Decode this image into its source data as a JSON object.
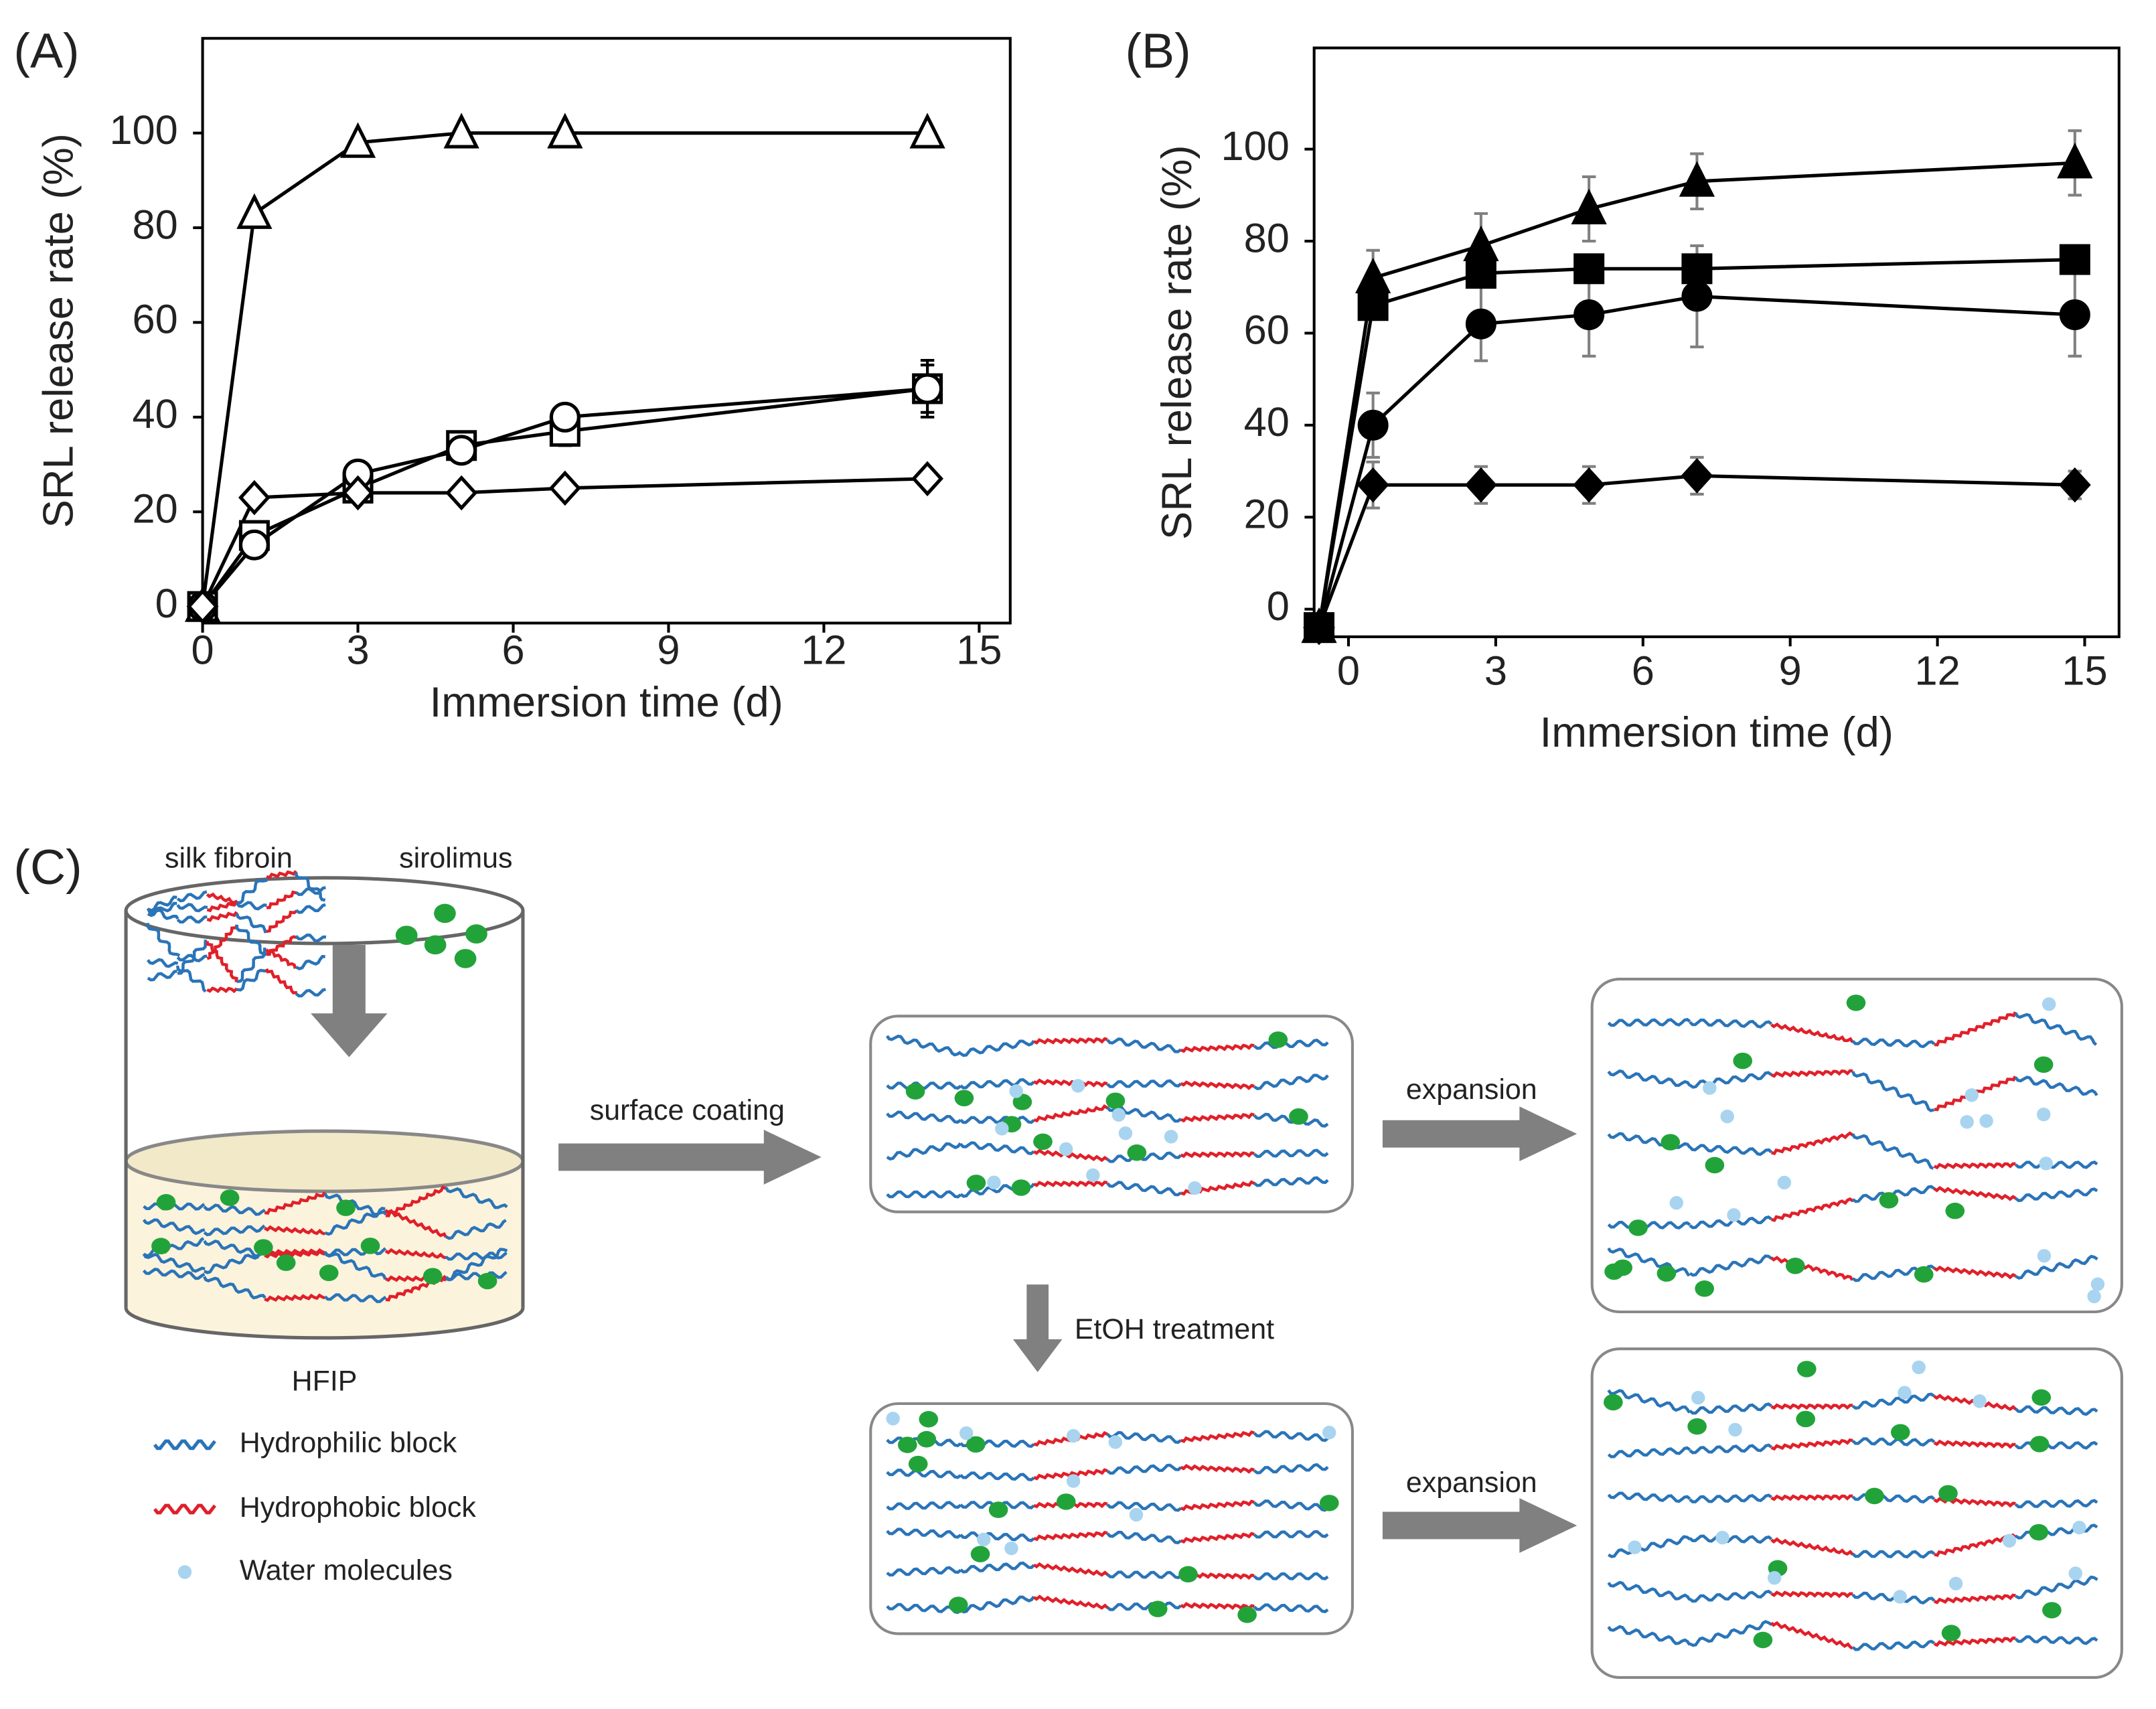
{
  "chart_data": [
    {
      "type": "line",
      "panel_label": "(A)",
      "x_label": "Immersion time (d)",
      "y_label": "SRL release rate (%)",
      "x": [
        0,
        1,
        3,
        5,
        7,
        14
      ],
      "xlim": [
        0,
        15.6
      ],
      "xticks": [
        0,
        3,
        6,
        9,
        12,
        15
      ],
      "ylim": [
        -3.5,
        120
      ],
      "yticks": [
        0,
        20,
        40,
        60,
        80,
        100
      ],
      "error_color": "#000000",
      "series": [
        {
          "marker": "triangle",
          "color": "#000000",
          "marker_fill": "#ffffff",
          "values": [
            0,
            83,
            98,
            100,
            100,
            100
          ],
          "errors": [
            0,
            0,
            0,
            0,
            0,
            0
          ]
        },
        {
          "marker": "square",
          "color": "#000000",
          "marker_fill": "#ffffff",
          "values": [
            0,
            15,
            25,
            34,
            37,
            46
          ],
          "errors": [
            0,
            1,
            1,
            2,
            3,
            6
          ]
        },
        {
          "marker": "circle",
          "color": "#000000",
          "marker_fill": "#ffffff",
          "values": [
            0,
            13,
            28,
            33,
            40,
            46
          ],
          "errors": [
            0,
            1,
            1,
            1,
            1,
            5
          ]
        },
        {
          "marker": "diamond",
          "color": "#000000",
          "marker_fill": "#ffffff",
          "values": [
            0,
            23,
            24,
            24,
            25,
            27
          ],
          "errors": [
            0,
            0,
            0,
            0,
            0,
            0
          ]
        }
      ]
    },
    {
      "type": "line",
      "panel_label": "(B)",
      "x_label": "Immersion time (d)",
      "y_label": "SRL release rate (%)",
      "x": [
        -0.6,
        0.5,
        2.7,
        4.9,
        7.1,
        14.8
      ],
      "xlim": [
        -0.7,
        15.7
      ],
      "xticks": [
        0,
        3,
        6,
        9,
        12,
        15
      ],
      "ylim": [
        -6,
        122
      ],
      "yticks": [
        0,
        20,
        40,
        60,
        80,
        100
      ],
      "error_color": "#808080",
      "series": [
        {
          "marker": "triangle",
          "color": "#000000",
          "marker_fill": "#000000",
          "values": [
            -4,
            72,
            79,
            87,
            93,
            97
          ],
          "errors": [
            0,
            6,
            7,
            7,
            6,
            7
          ]
        },
        {
          "marker": "square",
          "color": "#000000",
          "marker_fill": "#000000",
          "values": [
            -4,
            66,
            73,
            74,
            74,
            76
          ],
          "errors": [
            0,
            3,
            2,
            2,
            3,
            2
          ]
        },
        {
          "marker": "circle",
          "color": "#000000",
          "marker_fill": "#000000",
          "values": [
            -4,
            40,
            62,
            64,
            68,
            64
          ],
          "errors": [
            0,
            7,
            8,
            9,
            11,
            9
          ]
        },
        {
          "marker": "diamond",
          "color": "#000000",
          "marker_fill": "#000000",
          "values": [
            -4,
            27,
            27,
            27,
            29,
            27
          ],
          "errors": [
            0,
            5,
            4,
            4,
            4,
            3
          ]
        }
      ]
    }
  ],
  "diagram": {
    "panel_label": "(C)",
    "inputs": [
      "silk fibroin",
      "sirolimus"
    ],
    "solvent": "HFIP",
    "legend": [
      "Hydrophilic block",
      "Hydrophobic block",
      "Water molecules"
    ],
    "steps": [
      "surface coating",
      "expansion",
      "EtOH treatment",
      "expansion"
    ]
  }
}
